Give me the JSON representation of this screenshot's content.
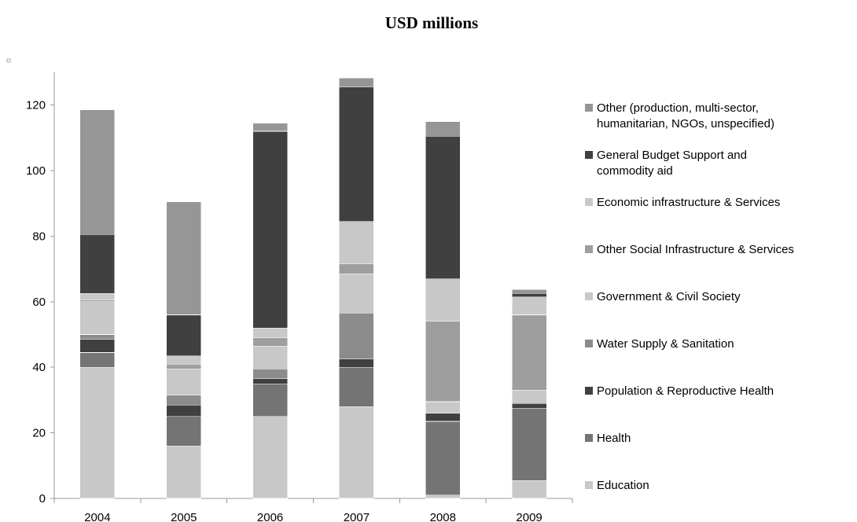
{
  "chart_data": {
    "type": "bar",
    "stacked": true,
    "title": "USD millions",
    "xlabel": "",
    "ylabel": "",
    "ylim": [
      0,
      130
    ],
    "yticks": [
      0,
      20,
      40,
      60,
      80,
      100,
      120
    ],
    "grid": false,
    "legend_position": "right",
    "categories": [
      "2004",
      "2005",
      "2006",
      "2007",
      "2008",
      "2009"
    ],
    "series": [
      {
        "name": "Education",
        "color": "#c8c8c8",
        "values": [
          40,
          16,
          25,
          28,
          1,
          5.5
        ]
      },
      {
        "name": "Health",
        "color": "#747474",
        "values": [
          4.5,
          9,
          10,
          12,
          22.5,
          22
        ]
      },
      {
        "name": "Population & Reproductive Health",
        "color": "#404040",
        "values": [
          4,
          3.5,
          1.5,
          2.5,
          2.5,
          1.5
        ]
      },
      {
        "name": "Water Supply & Sanitation",
        "color": "#8c8c8c",
        "values": [
          1.5,
          3,
          3,
          14,
          0,
          0.2
        ]
      },
      {
        "name": "Government & Civil Society",
        "color": "#c8c8c8",
        "values": [
          10,
          8,
          7,
          12,
          3.5,
          3.8
        ]
      },
      {
        "name": "Other Social Infrastructure & Services",
        "color": "#9e9e9e",
        "values": [
          0.5,
          1.5,
          2.5,
          3,
          24.5,
          23
        ]
      },
      {
        "name": "Economic infrastructure & Services",
        "color": "#c8c8c8",
        "values": [
          2,
          2.5,
          3,
          13,
          13,
          5.5
        ]
      },
      {
        "name": "General Budget Support and commodity aid",
        "color": "#404040",
        "values": [
          18,
          12.5,
          60,
          41,
          43.5,
          1
        ]
      },
      {
        "name": "Other (production, multi-sector, humanitarian, NGOs, unspecified)",
        "color": "#969696",
        "values": [
          38,
          34.5,
          2.5,
          2.8,
          4.5,
          1.2
        ]
      }
    ],
    "legend": [
      {
        "lines": [
          "Other (production, multi-sector,",
          "humanitarian, NGOs, unspecified)"
        ],
        "color": "#969696"
      },
      {
        "lines": [
          "General Budget Support and",
          "commodity aid"
        ],
        "color": "#404040"
      },
      {
        "lines": [
          "Economic infrastructure & Services"
        ],
        "color": "#c8c8c8"
      },
      {
        "lines": [
          "Other Social Infrastructure & Services"
        ],
        "color": "#9e9e9e"
      },
      {
        "lines": [
          "Government & Civil Society"
        ],
        "color": "#c8c8c8"
      },
      {
        "lines": [
          "Water Supply & Sanitation"
        ],
        "color": "#8c8c8c"
      },
      {
        "lines": [
          "Population & Reproductive Health"
        ],
        "color": "#404040"
      },
      {
        "lines": [
          "Health"
        ],
        "color": "#747474"
      },
      {
        "lines": [
          "Education"
        ],
        "color": "#c8c8c8"
      }
    ]
  }
}
